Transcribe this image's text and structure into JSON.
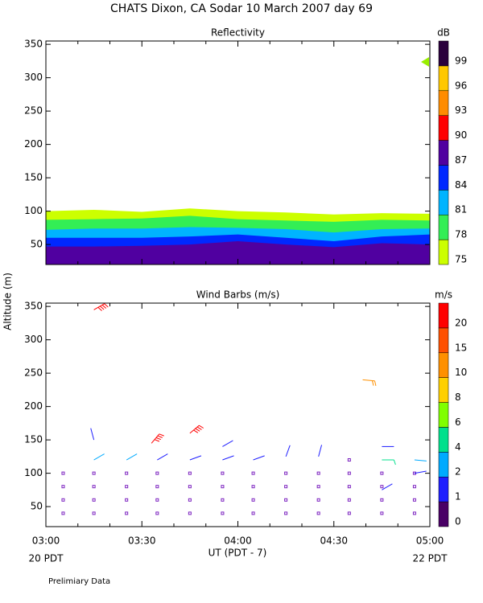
{
  "title": "CHATS Dixon, CA  Sodar  10 March 2007  day  69",
  "y_label": "Altitude (m)",
  "x_label": "UT  (PDT - 7)",
  "x_end_labels": [
    "20 PDT",
    "22 PDT"
  ],
  "footnote": "Prelimiary Data",
  "chart_data": [
    {
      "type": "contour",
      "title": "Reflectivity",
      "x": [
        3,
        3.25,
        3.5,
        3.75,
        4,
        4.25,
        4.5,
        4.75,
        5
      ],
      "series": [
        {
          "color": "#ccff00",
          "values": [
            100,
            102,
            99,
            104,
            100,
            98,
            95,
            97,
            96
          ]
        },
        {
          "color": "#33ee55",
          "values": [
            87,
            88,
            89,
            93,
            88,
            86,
            84,
            87,
            86
          ]
        },
        {
          "color": "#00b4ff",
          "values": [
            72,
            74,
            74,
            76,
            75,
            73,
            68,
            73,
            74
          ]
        },
        {
          "color": "#0028ff",
          "values": [
            60,
            60,
            60,
            62,
            65,
            60,
            55,
            62,
            65
          ]
        },
        {
          "color": "#5000a0",
          "values": [
            47,
            47,
            48,
            50,
            55,
            50,
            46,
            52,
            50
          ]
        }
      ],
      "xlim": [
        3,
        5
      ],
      "xticks": [
        3,
        3.5,
        4,
        4.5,
        5
      ],
      "ylim": [
        20,
        355
      ],
      "yticks": [
        50,
        100,
        150,
        200,
        250,
        300,
        350
      ],
      "colorbar": {
        "unit": "dB",
        "levels": [
          75,
          78,
          81,
          84,
          87,
          90,
          93,
          96,
          99
        ],
        "colors": [
          "#ccff00",
          "#33ee55",
          "#00b4ff",
          "#0028ff",
          "#5000a0",
          "#ff0000",
          "#ff8c00",
          "#ffc800",
          "#2a003c"
        ]
      }
    },
    {
      "type": "barbs",
      "title": "Wind Barbs (m/s)",
      "x": [
        3.25,
        3.25,
        3.25,
        3.42,
        3.55,
        3.58,
        3.75,
        3.75,
        3.92,
        3.92,
        4.08,
        4.25,
        4.42,
        4.65,
        4.75,
        4.75,
        4.75,
        4.92,
        4.92
      ],
      "y": [
        120,
        150,
        345,
        120,
        145,
        120,
        120,
        160,
        120,
        140,
        120,
        125,
        125,
        240,
        120,
        140,
        75,
        120,
        100
      ],
      "speed": [
        3,
        1.5,
        22,
        3,
        22,
        1.5,
        1.5,
        22,
        1.5,
        1.5,
        1.5,
        1.5,
        1.5,
        12,
        5,
        1.5,
        1.5,
        3,
        1.5
      ],
      "direction": [
        60,
        345,
        60,
        60,
        40,
        60,
        70,
        50,
        70,
        60,
        70,
        20,
        15,
        95,
        90,
        90,
        60,
        95,
        80
      ],
      "calm": {
        "x": [
          3.09,
          3.09,
          3.09,
          3.09,
          3.25,
          3.25,
          3.25,
          3.25,
          3.42,
          3.42,
          3.42,
          3.42,
          3.58,
          3.58,
          3.58,
          3.58,
          3.75,
          3.75,
          3.75,
          3.75,
          3.92,
          3.92,
          3.92,
          3.92,
          4.08,
          4.08,
          4.08,
          4.08,
          4.25,
          4.25,
          4.25,
          4.25,
          4.42,
          4.42,
          4.42,
          4.42,
          4.58,
          4.58,
          4.58,
          4.58,
          4.75,
          4.75,
          4.75,
          4.75,
          4.92,
          4.92,
          4.92,
          4.92,
          4.58
        ],
        "y": [
          40,
          60,
          80,
          100,
          40,
          60,
          80,
          100,
          40,
          60,
          80,
          100,
          40,
          60,
          80,
          100,
          40,
          60,
          80,
          100,
          40,
          60,
          80,
          100,
          40,
          60,
          80,
          100,
          40,
          60,
          80,
          100,
          40,
          60,
          80,
          100,
          40,
          60,
          80,
          100,
          40,
          60,
          80,
          100,
          40,
          60,
          80,
          100,
          120
        ]
      },
      "xlim": [
        3,
        5
      ],
      "xticks": [
        {
          "value": 3,
          "label": "03:00"
        },
        {
          "value": 3.5,
          "label": "03:30"
        },
        {
          "value": 4,
          "label": "04:00"
        },
        {
          "value": 4.5,
          "label": "04:30"
        },
        {
          "value": 5,
          "label": "05:00"
        }
      ],
      "ylim": [
        20,
        355
      ],
      "yticks": [
        50,
        100,
        150,
        200,
        250,
        300,
        350
      ],
      "colorbar": {
        "unit": "m/s",
        "levels": [
          0,
          1,
          2,
          4,
          6,
          8,
          10,
          15,
          20
        ],
        "colors": [
          "#4a0066",
          "#1e1eff",
          "#00aaff",
          "#00e08c",
          "#80ff00",
          "#ffd000",
          "#ff9000",
          "#ff5000",
          "#ff0000"
        ]
      }
    }
  ]
}
